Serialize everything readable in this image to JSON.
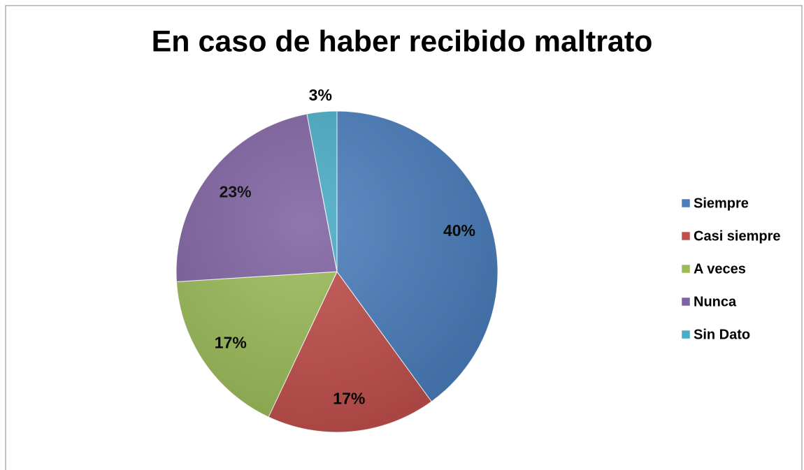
{
  "chart_data": {
    "type": "pie",
    "title": "En caso de haber recibido maltrato",
    "categories": [
      "Siempre",
      "Casi siempre",
      "A veces",
      "Nunca",
      "Sin Dato"
    ],
    "values": [
      40,
      17,
      17,
      23,
      3
    ],
    "value_labels": [
      "40%",
      "17%",
      "17%",
      "23%",
      "3%"
    ],
    "colors": [
      "#4a7ebb",
      "#c0504d",
      "#9bbb59",
      "#8064a2",
      "#4bacc6"
    ],
    "legend": "right"
  }
}
